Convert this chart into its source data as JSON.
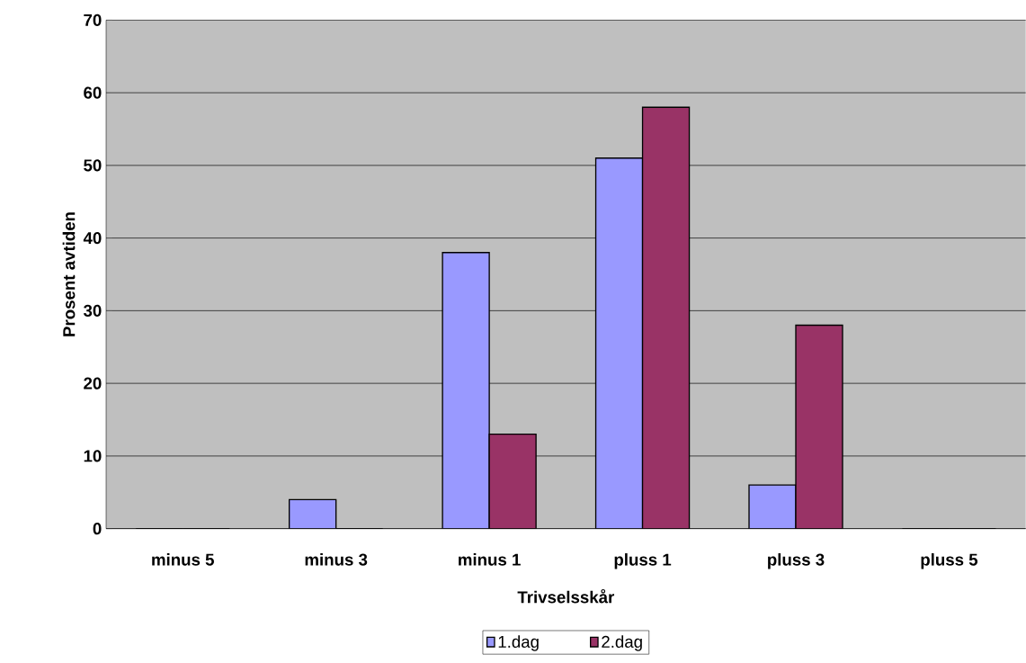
{
  "chart_data": {
    "type": "bar",
    "xlabel": "Trivselsskår",
    "ylabel": "Prosent avtiden",
    "categories": [
      "minus 5",
      "minus 3",
      "minus 1",
      "pluss 1",
      "pluss 3",
      "pluss 5"
    ],
    "series": [
      {
        "name": "1.dag",
        "color": "#9999ff",
        "values": [
          0,
          4,
          38,
          51,
          6,
          0
        ]
      },
      {
        "name": "2.dag",
        "color": "#993366",
        "values": [
          0,
          0,
          13,
          58,
          28,
          0
        ]
      }
    ],
    "ylim": [
      0,
      70
    ],
    "yticks": [
      0,
      10,
      20,
      30,
      40,
      50,
      60,
      70
    ],
    "grid": "y",
    "legend": "bottom"
  }
}
